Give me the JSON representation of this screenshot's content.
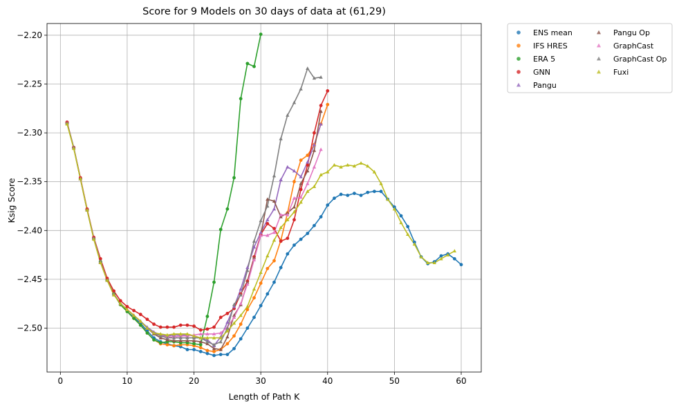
{
  "chart_data": {
    "type": "line",
    "title": "Score for 9 Models on 30 days of data at (61,29)",
    "xlabel": "Length of Path K",
    "ylabel": "Ksig Score",
    "xlim": [
      -2,
      63
    ],
    "ylim": [
      -2.545,
      -2.188
    ],
    "xticks": [
      0,
      10,
      20,
      30,
      40,
      50,
      60
    ],
    "yticks": [
      -2.2,
      -2.25,
      -2.3,
      -2.35,
      -2.4,
      -2.45,
      -2.5
    ],
    "xtick_labels": [
      "0",
      "10",
      "20",
      "30",
      "40",
      "50",
      "60"
    ],
    "ytick_labels": [
      "−2.20",
      "−2.25",
      "−2.30",
      "−2.35",
      "−2.40",
      "−2.45",
      "−2.50"
    ],
    "grid": true,
    "legend_position": "outside-top-right",
    "legend_columns": 2,
    "series": [
      {
        "name": "ENS mean",
        "color": "#1f77b4",
        "marker": "circle",
        "x": [
          1,
          2,
          3,
          4,
          5,
          6,
          7,
          8,
          9,
          10,
          11,
          12,
          13,
          14,
          15,
          16,
          17,
          18,
          19,
          20,
          21,
          22,
          23,
          24,
          25,
          26,
          27,
          28,
          29,
          30,
          31,
          32,
          33,
          34,
          35,
          36,
          37,
          38,
          39,
          40,
          41,
          42,
          43,
          44,
          45,
          46,
          47,
          48,
          49,
          50,
          51,
          52,
          53,
          54,
          55,
          56,
          57,
          58,
          59,
          60
        ],
        "y": [
          -2.29,
          -2.315,
          -2.347,
          -2.379,
          -2.408,
          -2.432,
          -2.451,
          -2.465,
          -2.476,
          -2.483,
          -2.489,
          -2.495,
          -2.503,
          -2.51,
          -2.514,
          -2.516,
          -2.518,
          -2.519,
          -2.522,
          -2.522,
          -2.524,
          -2.526,
          -2.528,
          -2.527,
          -2.527,
          -2.521,
          -2.511,
          -2.5,
          -2.489,
          -2.477,
          -2.465,
          -2.453,
          -2.438,
          -2.424,
          -2.415,
          -2.409,
          -2.403,
          -2.395,
          -2.386,
          -2.374,
          -2.367,
          -2.363,
          -2.364,
          -2.362,
          -2.364,
          -2.361,
          -2.36,
          -2.36,
          -2.368,
          -2.376,
          -2.385,
          -2.396,
          -2.412,
          -2.427,
          -2.434,
          -2.432,
          -2.426,
          -2.424,
          -2.429,
          -2.435
        ]
      },
      {
        "name": "IFS HRES",
        "color": "#ff7f0e",
        "marker": "circle",
        "x": [
          1,
          2,
          3,
          4,
          5,
          6,
          7,
          8,
          9,
          10,
          11,
          12,
          13,
          14,
          15,
          16,
          17,
          18,
          19,
          20,
          21,
          22,
          23,
          24,
          25,
          26,
          27,
          28,
          29,
          30,
          31,
          32,
          33,
          34,
          35,
          36,
          37,
          38,
          39,
          40
        ],
        "y": [
          -2.29,
          -2.315,
          -2.347,
          -2.379,
          -2.408,
          -2.432,
          -2.451,
          -2.465,
          -2.476,
          -2.483,
          -2.49,
          -2.497,
          -2.505,
          -2.512,
          -2.516,
          -2.517,
          -2.518,
          -2.517,
          -2.517,
          -2.518,
          -2.52,
          -2.523,
          -2.524,
          -2.522,
          -2.516,
          -2.508,
          -2.496,
          -2.481,
          -2.469,
          -2.454,
          -2.439,
          -2.431,
          -2.41,
          -2.382,
          -2.35,
          -2.328,
          -2.323,
          -2.312,
          -2.291,
          -2.271
        ]
      },
      {
        "name": "ERA 5",
        "color": "#2ca02c",
        "marker": "circle",
        "x": [
          1,
          2,
          3,
          4,
          5,
          6,
          7,
          8,
          9,
          10,
          11,
          12,
          13,
          14,
          15,
          16,
          17,
          18,
          19,
          20,
          21,
          22,
          23,
          24,
          25,
          26,
          27,
          28,
          29,
          30
        ],
        "y": [
          -2.29,
          -2.315,
          -2.347,
          -2.379,
          -2.408,
          -2.432,
          -2.451,
          -2.465,
          -2.476,
          -2.483,
          -2.49,
          -2.497,
          -2.505,
          -2.512,
          -2.515,
          -2.514,
          -2.514,
          -2.515,
          -2.515,
          -2.516,
          -2.517,
          -2.488,
          -2.453,
          -2.399,
          -2.378,
          -2.346,
          -2.265,
          -2.229,
          -2.232,
          -2.199
        ]
      },
      {
        "name": "GNN",
        "color": "#d62728",
        "marker": "circle",
        "x": [
          1,
          2,
          3,
          4,
          5,
          6,
          7,
          8,
          9,
          10,
          11,
          12,
          13,
          14,
          15,
          16,
          17,
          18,
          19,
          20,
          21,
          22,
          23,
          24,
          25,
          26,
          27,
          28,
          29,
          30,
          31,
          32,
          33,
          34,
          35,
          36,
          37,
          38,
          39,
          40
        ],
        "y": [
          -2.289,
          -2.315,
          -2.346,
          -2.378,
          -2.407,
          -2.429,
          -2.449,
          -2.462,
          -2.472,
          -2.478,
          -2.482,
          -2.486,
          -2.491,
          -2.496,
          -2.499,
          -2.499,
          -2.499,
          -2.497,
          -2.497,
          -2.498,
          -2.502,
          -2.501,
          -2.499,
          -2.489,
          -2.485,
          -2.48,
          -2.465,
          -2.452,
          -2.427,
          -2.404,
          -2.393,
          -2.398,
          -2.411,
          -2.408,
          -2.389,
          -2.358,
          -2.333,
          -2.3,
          -2.272,
          -2.257
        ]
      },
      {
        "name": "Pangu",
        "color": "#9467bd",
        "marker": "triangle",
        "x": [
          1,
          2,
          3,
          4,
          5,
          6,
          7,
          8,
          9,
          10,
          11,
          12,
          13,
          14,
          15,
          16,
          17,
          18,
          19,
          20,
          21,
          22,
          23,
          24,
          25,
          26,
          27,
          28,
          29,
          30,
          31,
          32,
          33,
          34,
          35,
          36,
          37,
          38,
          39
        ],
        "y": [
          -2.29,
          -2.315,
          -2.347,
          -2.379,
          -2.408,
          -2.432,
          -2.451,
          -2.465,
          -2.475,
          -2.481,
          -2.487,
          -2.493,
          -2.499,
          -2.504,
          -2.507,
          -2.508,
          -2.507,
          -2.507,
          -2.507,
          -2.508,
          -2.51,
          -2.512,
          -2.518,
          -2.509,
          -2.494,
          -2.478,
          -2.46,
          -2.438,
          -2.417,
          -2.402,
          -2.389,
          -2.378,
          -2.348,
          -2.335,
          -2.339,
          -2.345,
          -2.33,
          -2.312,
          -2.291
        ]
      },
      {
        "name": "Pangu Op",
        "color": "#8c564b",
        "marker": "triangle",
        "x": [
          1,
          2,
          3,
          4,
          5,
          6,
          7,
          8,
          9,
          10,
          11,
          12,
          13,
          14,
          15,
          16,
          17,
          18,
          19,
          20,
          21,
          22,
          23,
          24,
          25,
          26,
          27,
          28,
          29,
          30,
          31,
          32,
          33,
          34,
          35,
          36,
          37,
          38,
          39
        ],
        "y": [
          -2.29,
          -2.315,
          -2.347,
          -2.379,
          -2.408,
          -2.432,
          -2.451,
          -2.465,
          -2.475,
          -2.481,
          -2.487,
          -2.493,
          -2.5,
          -2.506,
          -2.51,
          -2.512,
          -2.513,
          -2.513,
          -2.513,
          -2.513,
          -2.514,
          -2.516,
          -2.521,
          -2.522,
          -2.509,
          -2.487,
          -2.476,
          -2.453,
          -2.428,
          -2.405,
          -2.368,
          -2.37,
          -2.386,
          -2.382,
          -2.376,
          -2.352,
          -2.339,
          -2.318,
          -2.278
        ]
      },
      {
        "name": "GraphCast",
        "color": "#e377c2",
        "marker": "triangle",
        "x": [
          1,
          2,
          3,
          4,
          5,
          6,
          7,
          8,
          9,
          10,
          11,
          12,
          13,
          14,
          15,
          16,
          17,
          18,
          19,
          20,
          21,
          22,
          23,
          24,
          25,
          26,
          27,
          28,
          29,
          30,
          31,
          32,
          33,
          34,
          35,
          36,
          37,
          38,
          39
        ],
        "y": [
          -2.29,
          -2.315,
          -2.347,
          -2.379,
          -2.408,
          -2.432,
          -2.451,
          -2.465,
          -2.475,
          -2.481,
          -2.487,
          -2.493,
          -2.5,
          -2.505,
          -2.508,
          -2.509,
          -2.509,
          -2.508,
          -2.508,
          -2.507,
          -2.506,
          -2.506,
          -2.506,
          -2.505,
          -2.499,
          -2.489,
          -2.475,
          -2.455,
          -2.43,
          -2.405,
          -2.405,
          -2.402,
          -2.384,
          -2.384,
          -2.367,
          -2.366,
          -2.352,
          -2.335,
          -2.317
        ]
      },
      {
        "name": "GraphCast Op",
        "color": "#7f7f7f",
        "marker": "triangle",
        "x": [
          1,
          2,
          3,
          4,
          5,
          6,
          7,
          8,
          9,
          10,
          11,
          12,
          13,
          14,
          15,
          16,
          17,
          18,
          19,
          20,
          21,
          22,
          23,
          24,
          25,
          26,
          27,
          28,
          29,
          30,
          31,
          32,
          33,
          34,
          35,
          36,
          37,
          38,
          39
        ],
        "y": [
          -2.29,
          -2.315,
          -2.347,
          -2.379,
          -2.408,
          -2.432,
          -2.451,
          -2.465,
          -2.475,
          -2.481,
          -2.487,
          -2.493,
          -2.5,
          -2.505,
          -2.508,
          -2.51,
          -2.51,
          -2.51,
          -2.51,
          -2.51,
          -2.51,
          -2.514,
          -2.517,
          -2.514,
          -2.5,
          -2.476,
          -2.466,
          -2.441,
          -2.411,
          -2.39,
          -2.375,
          -2.344,
          -2.306,
          -2.282,
          -2.269,
          -2.255,
          -2.234,
          -2.244,
          -2.243
        ]
      },
      {
        "name": "Fuxi",
        "color": "#bcbd22",
        "marker": "triangle",
        "x": [
          1,
          2,
          3,
          4,
          5,
          6,
          7,
          8,
          9,
          10,
          11,
          12,
          13,
          14,
          15,
          16,
          17,
          18,
          19,
          20,
          21,
          22,
          23,
          24,
          25,
          26,
          27,
          28,
          29,
          30,
          31,
          32,
          33,
          34,
          35,
          36,
          37,
          38,
          39,
          40,
          41,
          42,
          43,
          44,
          45,
          46,
          47,
          48,
          49,
          50,
          51,
          52,
          53,
          54,
          55,
          56,
          57,
          58,
          59
        ],
        "y": [
          -2.291,
          -2.316,
          -2.347,
          -2.379,
          -2.409,
          -2.433,
          -2.451,
          -2.466,
          -2.475,
          -2.481,
          -2.487,
          -2.493,
          -2.5,
          -2.505,
          -2.506,
          -2.507,
          -2.506,
          -2.506,
          -2.506,
          -2.508,
          -2.51,
          -2.51,
          -2.51,
          -2.51,
          -2.503,
          -2.495,
          -2.487,
          -2.478,
          -2.46,
          -2.443,
          -2.426,
          -2.41,
          -2.397,
          -2.389,
          -2.381,
          -2.371,
          -2.36,
          -2.355,
          -2.343,
          -2.34,
          -2.333,
          -2.335,
          -2.333,
          -2.334,
          -2.331,
          -2.334,
          -2.34,
          -2.352,
          -2.368,
          -2.378,
          -2.392,
          -2.404,
          -2.414,
          -2.427,
          -2.433,
          -2.433,
          -2.429,
          -2.425,
          -2.421
        ]
      }
    ]
  }
}
